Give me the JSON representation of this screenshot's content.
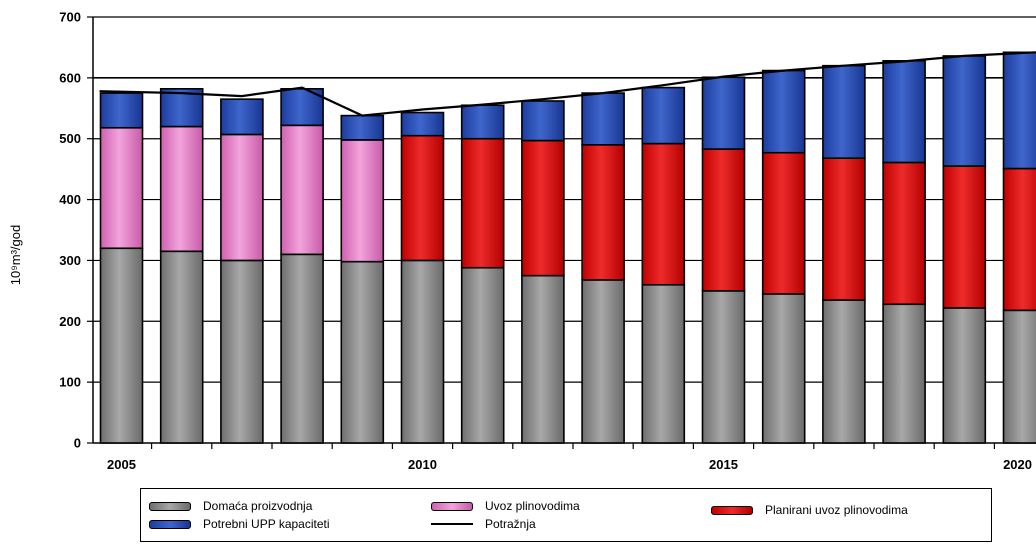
{
  "chart_data": {
    "type": "bar",
    "stacked": true,
    "ylabel": "10⁹m³/god",
    "ylim": [
      0,
      700
    ],
    "yticks": [
      0,
      100,
      200,
      300,
      400,
      500,
      600,
      700
    ],
    "years": [
      2005,
      2006,
      2007,
      2008,
      2009,
      2010,
      2011,
      2012,
      2013,
      2014,
      2015,
      2016,
      2017,
      2018,
      2019,
      2020
    ],
    "xtick_labels": [
      "2005",
      "2010",
      "2015",
      "2020"
    ],
    "grid": true,
    "reference_line": 600,
    "series": [
      {
        "name": "Domaća proizvodnja",
        "color": "#8c8c8c",
        "values": [
          320,
          315,
          300,
          310,
          298,
          300,
          288,
          275,
          268,
          260,
          250,
          245,
          235,
          228,
          222,
          218
        ]
      },
      {
        "name": "Uvoz plinovodima",
        "color": "#e680c8",
        "values": [
          198,
          205,
          207,
          212,
          200,
          0,
          0,
          0,
          0,
          0,
          0,
          0,
          0,
          0,
          0,
          0
        ]
      },
      {
        "name": "Planirani uvoz plinovodima",
        "color": "#dd1111",
        "values": [
          0,
          0,
          0,
          0,
          0,
          205,
          212,
          222,
          222,
          232,
          233,
          232,
          233,
          233,
          233,
          233
        ]
      },
      {
        "name": "Potrebni UPP kapaciteti",
        "color": "#2a4fb5",
        "values": [
          57,
          62,
          58,
          60,
          40,
          38,
          55,
          65,
          85,
          92,
          118,
          135,
          152,
          167,
          181,
          191
        ]
      }
    ],
    "line_series": {
      "name": "Potražnja",
      "color": "#000000",
      "values": [
        578,
        575,
        570,
        584,
        538,
        548,
        556,
        565,
        575,
        588,
        602,
        612,
        620,
        627,
        636,
        642
      ]
    },
    "legend": {
      "placement": "bottom",
      "items": [
        {
          "label": "Domaća proizvodnja",
          "kind": "bar",
          "color": "#8c8c8c"
        },
        {
          "label": "Uvoz plinovodima",
          "kind": "bar",
          "color": "#e680c8"
        },
        {
          "label": "Planirani uvoz plinovodima",
          "kind": "bar",
          "color": "#dd1111"
        },
        {
          "label": "Potrebni UPP kapaciteti",
          "kind": "bar",
          "color": "#2a4fb5"
        },
        {
          "label": "Potražnja",
          "kind": "line",
          "color": "#000000"
        }
      ]
    }
  }
}
